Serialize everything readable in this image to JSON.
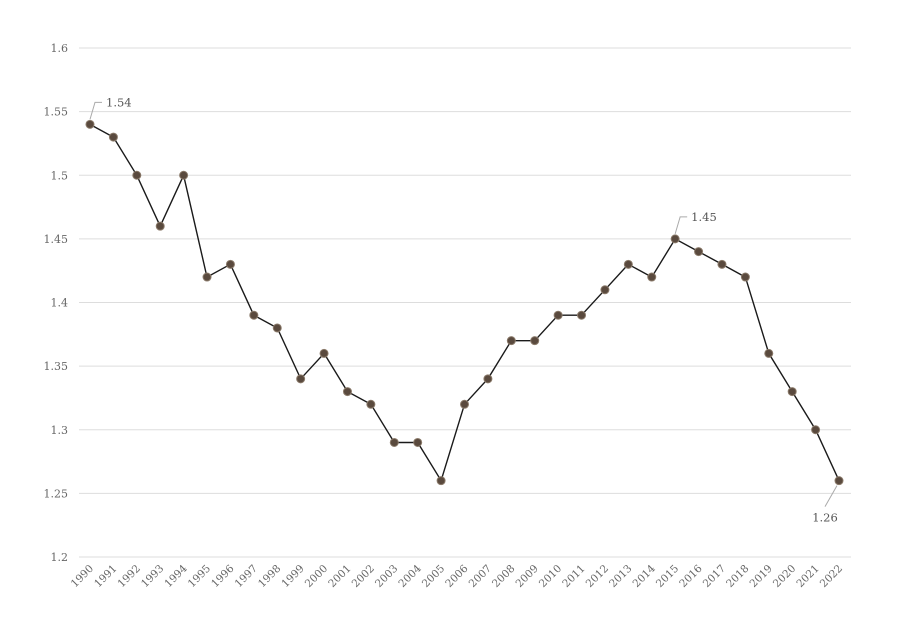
{
  "chart_data": {
    "type": "line",
    "title": "",
    "xlabel": "",
    "ylabel": "",
    "ylim": [
      1.2,
      1.6
    ],
    "yticks": [
      "1.2",
      "1.25",
      "1.3",
      "1.35",
      "1.4",
      "1.45",
      "1.5",
      "1.55",
      "1.6"
    ],
    "grid": true,
    "x": [
      "1990",
      "1991",
      "1992",
      "1993",
      "1994",
      "1995",
      "1996",
      "1997",
      "1998",
      "1999",
      "2000",
      "2001",
      "2002",
      "2003",
      "2004",
      "2005",
      "2006",
      "2007",
      "2008",
      "2009",
      "2010",
      "2011",
      "2012",
      "2013",
      "2014",
      "2015",
      "2016",
      "2017",
      "2018",
      "2019",
      "2020",
      "2021",
      "2022"
    ],
    "series": [
      {
        "values": [
          1.54,
          1.53,
          1.5,
          1.46,
          1.5,
          1.42,
          1.43,
          1.39,
          1.38,
          1.34,
          1.36,
          1.33,
          1.32,
          1.29,
          1.29,
          1.26,
          1.32,
          1.34,
          1.37,
          1.37,
          1.39,
          1.39,
          1.41,
          1.43,
          1.42,
          1.45,
          1.44,
          1.43,
          1.42,
          1.36,
          1.33,
          1.3,
          1.26
        ]
      }
    ],
    "annotations": [
      {
        "x": "1990",
        "text": "1.54",
        "side": "above"
      },
      {
        "x": "2015",
        "text": "1.45",
        "side": "above"
      },
      {
        "x": "2022",
        "text": "1.26",
        "side": "below"
      }
    ],
    "colors": {
      "line": "#1a1a1a",
      "marker": "#5a4a3e",
      "grid": "#dddddd"
    }
  }
}
